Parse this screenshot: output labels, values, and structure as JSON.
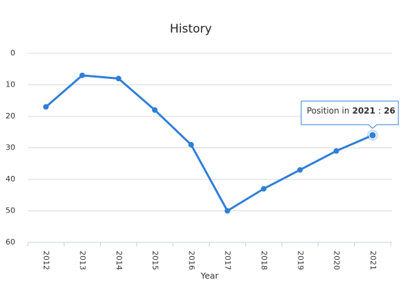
{
  "chart_data": {
    "type": "line",
    "title": "History",
    "x_label": "Year",
    "categories": [
      "2012",
      "2013",
      "2014",
      "2015",
      "2016",
      "2017",
      "2018",
      "2019",
      "2020",
      "2021"
    ],
    "series": [
      {
        "name": "Position",
        "color": "#2f7ed8",
        "values": [
          17,
          7,
          8,
          18,
          29,
          50,
          43,
          37,
          31,
          26
        ]
      }
    ],
    "ylim": [
      0,
      60
    ],
    "yticks": [
      0,
      10,
      20,
      30,
      40,
      50,
      60
    ],
    "reversed": true,
    "grid": true,
    "tooltip": {
      "text": "Position in",
      "separator": ":",
      "index": 9
    }
  }
}
